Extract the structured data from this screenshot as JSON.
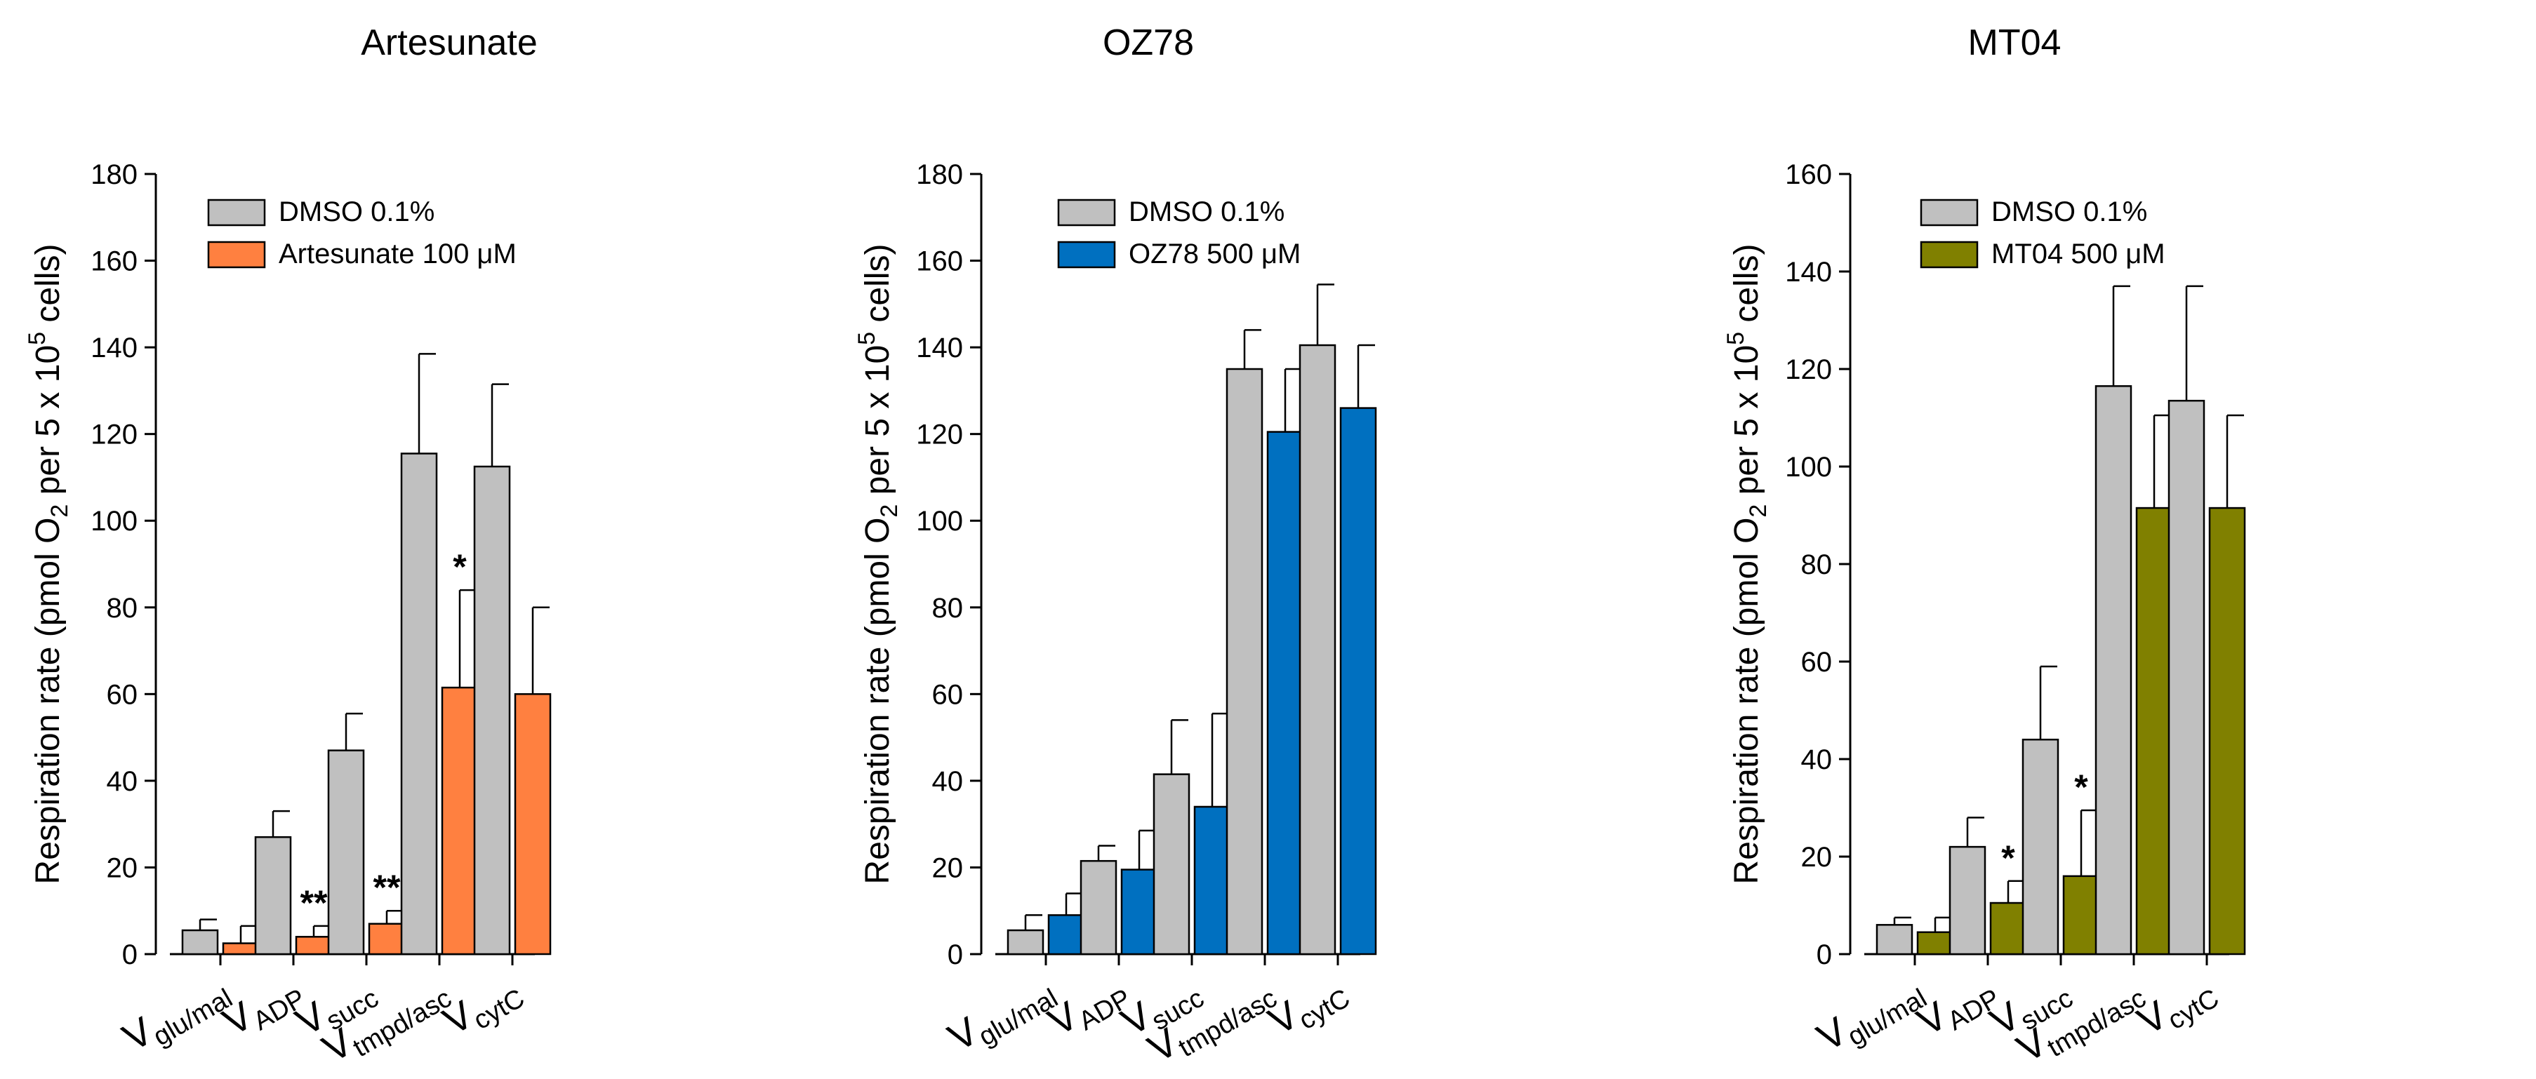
{
  "chart_data": [
    {
      "type": "bar",
      "title": "Artesunate",
      "ylabel": "Respiration rate (pmol O2 per 5 x 10^5 cells)",
      "ylabel_parts": {
        "pre": "Respiration rate (pmol O",
        "sub": "2",
        "mid": " per 5 x 10",
        "sup": "5",
        "post": " cells)"
      },
      "ylim": [
        0,
        180
      ],
      "yticks": [
        0,
        20,
        40,
        60,
        80,
        100,
        120,
        140,
        160,
        180
      ],
      "categories": [
        {
          "main": "V",
          "sub": "glu/mal"
        },
        {
          "main": "V",
          "sub": "ADP"
        },
        {
          "main": "V",
          "sub": "succ"
        },
        {
          "main": "V",
          "sub": "tmpd/asc"
        },
        {
          "main": "V",
          "sub": "cytC"
        }
      ],
      "series": [
        {
          "name": "DMSO 0.1%",
          "color": "#c0c0c0",
          "values": [
            5.5,
            27,
            47,
            115.5,
            112.5
          ],
          "errors": [
            2.5,
            6,
            8.5,
            23,
            19
          ]
        },
        {
          "name": "Artesunate 100 μM",
          "color": "#ff8040",
          "values": [
            2.5,
            4,
            7,
            61.5,
            60
          ],
          "errors": [
            4,
            2.5,
            3,
            22.5,
            20
          ]
        }
      ],
      "annotations": [
        {
          "category": 1,
          "series": 1,
          "text": "**"
        },
        {
          "category": 2,
          "series": 1,
          "text": "**"
        },
        {
          "category": 3,
          "series": 1,
          "text": "*"
        }
      ]
    },
    {
      "type": "bar",
      "title": "OZ78",
      "ylabel": "Respiration rate (pmol O2 per 5 x 10^5 cells)",
      "ylabel_parts": {
        "pre": "Respiration rate (pmol O",
        "sub": "2",
        "mid": " per 5 x 10",
        "sup": "5",
        "post": " cells)"
      },
      "ylim": [
        0,
        180
      ],
      "yticks": [
        0,
        20,
        40,
        60,
        80,
        100,
        120,
        140,
        160,
        180
      ],
      "categories": [
        {
          "main": "V",
          "sub": "glu/mal"
        },
        {
          "main": "V",
          "sub": "ADP"
        },
        {
          "main": "V",
          "sub": "succ"
        },
        {
          "main": "V",
          "sub": "tmpd/asc"
        },
        {
          "main": "V",
          "sub": "cytC"
        }
      ],
      "series": [
        {
          "name": "DMSO 0.1%",
          "color": "#c0c0c0",
          "values": [
            5.5,
            21.5,
            41.5,
            135,
            140.5
          ],
          "errors": [
            3.5,
            3.5,
            12.5,
            9,
            14
          ]
        },
        {
          "name": "OZ78 500 μM",
          "color": "#0070c0",
          "values": [
            9,
            19.5,
            34,
            120.5,
            126
          ],
          "errors": [
            5,
            9,
            21.5,
            14.5,
            14.5
          ]
        }
      ],
      "annotations": []
    },
    {
      "type": "bar",
      "title": "MT04",
      "ylabel": "Respiration rate (pmol O2 per 5 x 10^5 cells)",
      "ylabel_parts": {
        "pre": "Respiration rate (pmol O",
        "sub": "2",
        "mid": " per 5 x 10",
        "sup": "5",
        "post": " cells)"
      },
      "ylim": [
        0,
        160
      ],
      "yticks": [
        0,
        20,
        40,
        60,
        80,
        100,
        120,
        140,
        160
      ],
      "categories": [
        {
          "main": "V",
          "sub": "glu/mal"
        },
        {
          "main": "V",
          "sub": "ADP"
        },
        {
          "main": "V",
          "sub": "succ"
        },
        {
          "main": "V",
          "sub": "tmpd/asc"
        },
        {
          "main": "V",
          "sub": "cytC"
        }
      ],
      "series": [
        {
          "name": "DMSO 0.1%",
          "color": "#c0c0c0",
          "values": [
            6,
            22,
            44,
            116.5,
            113.5
          ],
          "errors": [
            1.5,
            6,
            15,
            20.5,
            23.5
          ]
        },
        {
          "name": "MT04 500 μM",
          "color": "#808000",
          "values": [
            4.5,
            10.5,
            16,
            91.5,
            91.5
          ],
          "errors": [
            3,
            4.5,
            13.5,
            19,
            19
          ]
        }
      ],
      "annotations": [
        {
          "category": 1,
          "series": 1,
          "text": "*"
        },
        {
          "category": 2,
          "series": 1,
          "text": "*"
        }
      ]
    }
  ]
}
